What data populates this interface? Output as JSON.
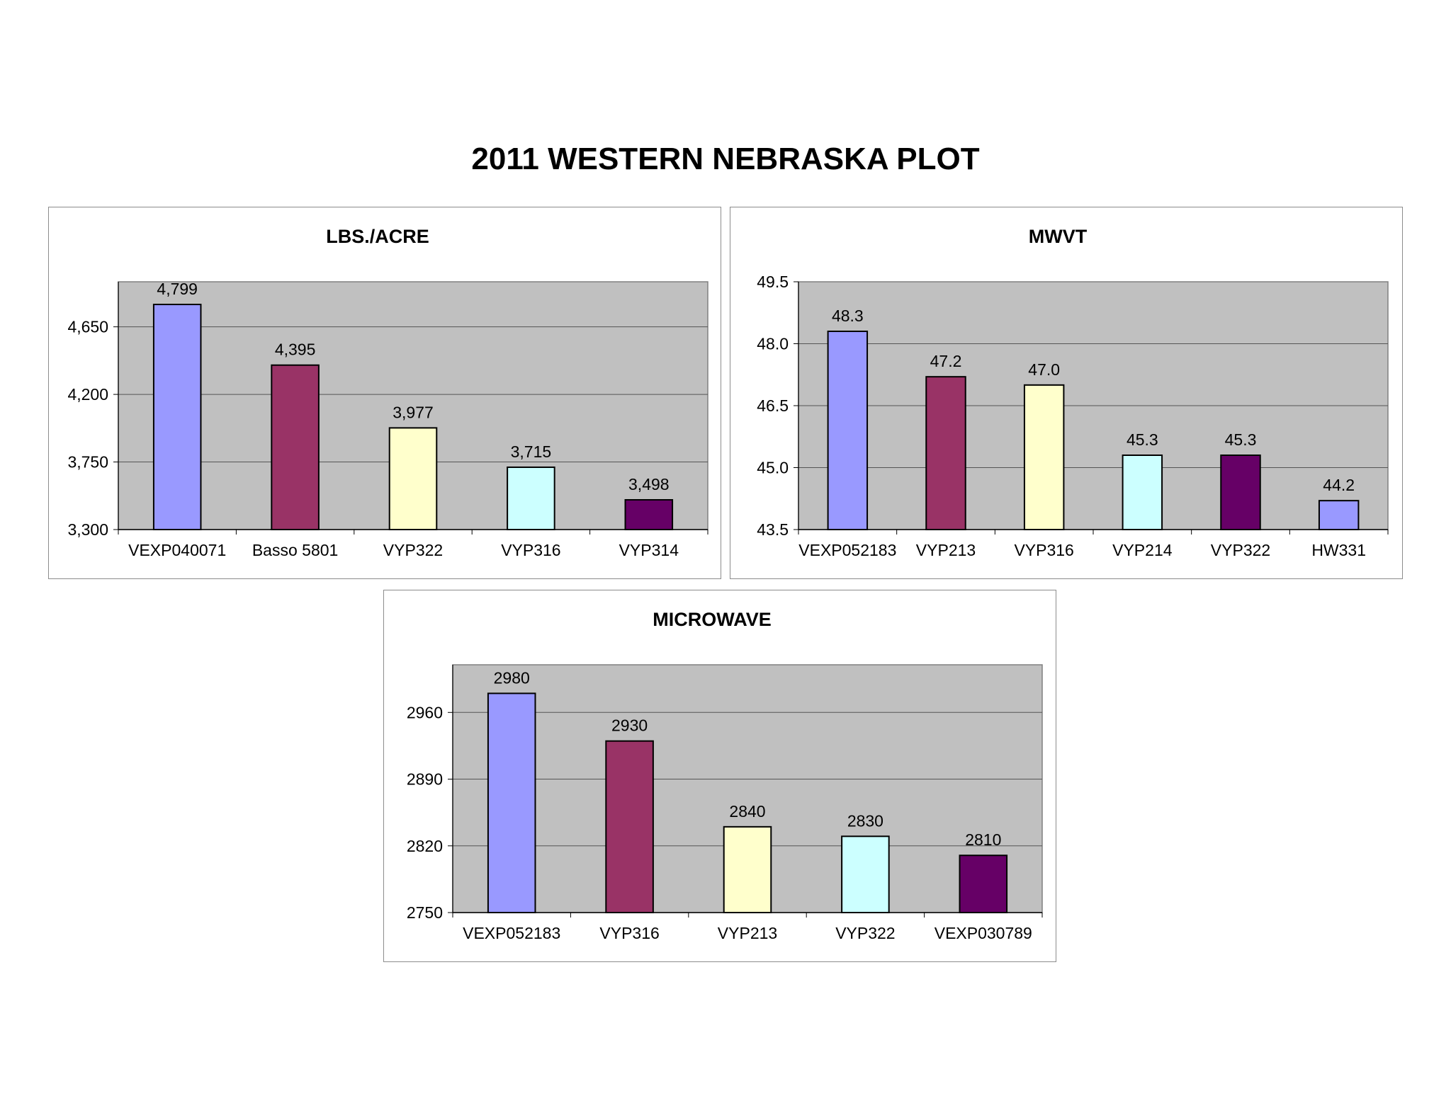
{
  "page": {
    "title": "2011 WESTERN NEBRASKA PLOT"
  },
  "chart_data": [
    {
      "type": "bar",
      "title": "LBS./ACRE",
      "categories": [
        "VEXP040071",
        "Basso 5801",
        "VYP322",
        "VYP316",
        "VYP314"
      ],
      "values": [
        4799,
        4395,
        3977,
        3715,
        3498
      ],
      "value_labels": [
        "4,799",
        "4,395",
        "3,977",
        "3,715",
        "3,498"
      ],
      "colors": [
        "#9999ff",
        "#993366",
        "#ffffcc",
        "#ccffff",
        "#660066"
      ],
      "ylim": [
        3300,
        4950
      ],
      "yticks": [
        3300,
        3750,
        4200,
        4650
      ],
      "ytick_labels": [
        "3,300",
        "3,750",
        "4,200",
        "4,650"
      ],
      "grid": true,
      "plot_background": "#c0c0c0"
    },
    {
      "type": "bar",
      "title": "MWVT",
      "categories": [
        "VEXP052183",
        "VYP213",
        "VYP316",
        "VYP214",
        "VYP322",
        "HW331"
      ],
      "values": [
        48.3,
        47.2,
        47.0,
        45.3,
        45.3,
        44.2
      ],
      "value_labels": [
        "48.3",
        "47.2",
        "47.0",
        "45.3",
        "45.3",
        "44.2"
      ],
      "colors": [
        "#9999ff",
        "#993366",
        "#ffffcc",
        "#ccffff",
        "#660066",
        "#9999ff"
      ],
      "ylim": [
        43.5,
        49.5
      ],
      "yticks": [
        43.5,
        45.0,
        46.5,
        48.0,
        49.5
      ],
      "ytick_labels": [
        "43.5",
        "45.0",
        "46.5",
        "48.0",
        "49.5"
      ],
      "grid": true,
      "plot_background": "#c0c0c0"
    },
    {
      "type": "bar",
      "title": "MICROWAVE",
      "categories": [
        "VEXP052183",
        "VYP316",
        "VYP213",
        "VYP322",
        "VEXP030789"
      ],
      "values": [
        2980,
        2930,
        2840,
        2830,
        2810
      ],
      "value_labels": [
        "2980",
        "2930",
        "2840",
        "2830",
        "2810"
      ],
      "colors": [
        "#9999ff",
        "#993366",
        "#ffffcc",
        "#ccffff",
        "#660066"
      ],
      "ylim": [
        2750,
        3010
      ],
      "yticks": [
        2750,
        2820,
        2890,
        2960
      ],
      "ytick_labels": [
        "2750",
        "2820",
        "2890",
        "2960"
      ],
      "grid": true,
      "plot_background": "#c0c0c0"
    }
  ]
}
